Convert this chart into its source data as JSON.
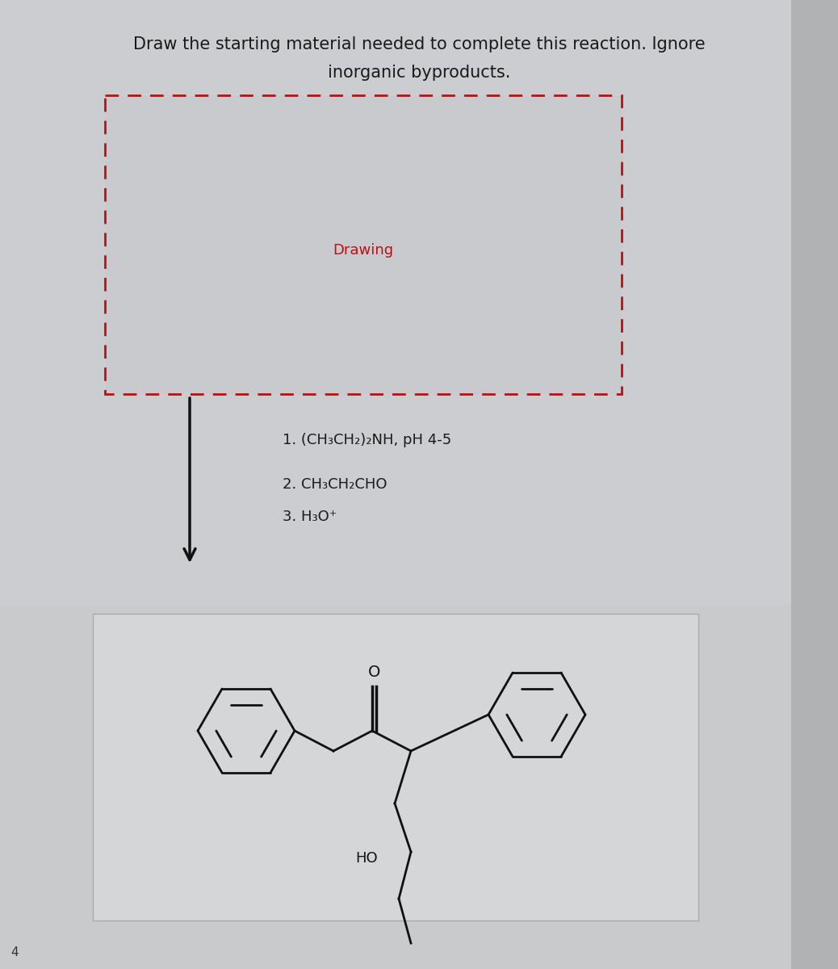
{
  "title_line1": "Draw the starting material needed to complete this reaction. Ignore",
  "title_line2": "inorganic byproducts.",
  "drawing_label": "Drawing",
  "reaction_steps": [
    "1. (CH₃CH₂)₂NH, pH 4-5",
    "2. CH₃CH₂CHO",
    "3. H₃O⁺"
  ],
  "bg_color": "#c8c8c8",
  "upper_panel_bg": "#c0c4c8",
  "dashed_box_bg": "#c5c8cc",
  "lower_panel_bg": "#d0d2d4",
  "title_color": "#1a1a1a",
  "dashed_box_color": "#bb1111",
  "product_color": "#111111",
  "arrow_color": "#111111",
  "title_fontsize": 15,
  "step_fontsize": 13
}
